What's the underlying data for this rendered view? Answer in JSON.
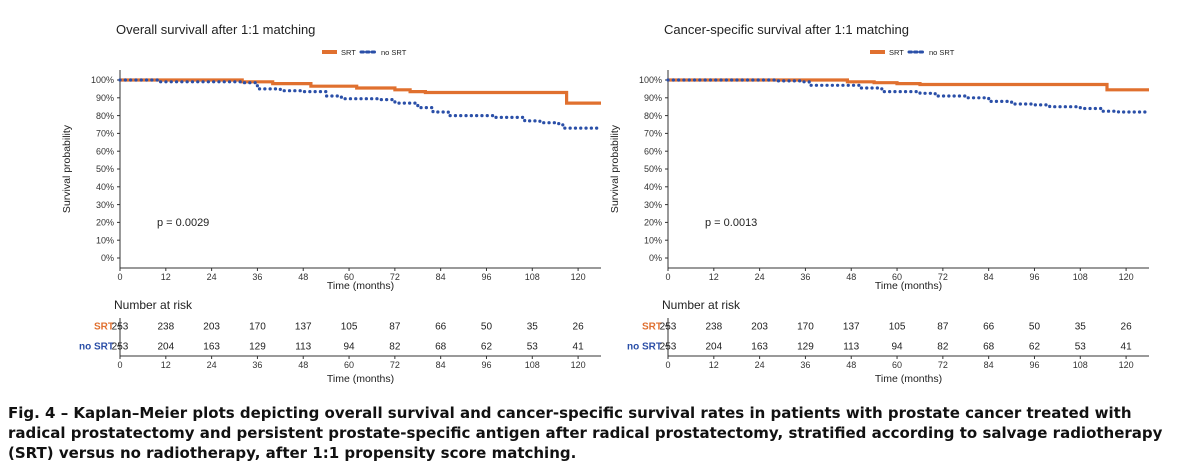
{
  "chart_data": [
    {
      "type": "line",
      "title": "Overall survivall after 1:1 matching",
      "xlabel": "Time (months)",
      "ylabel": "Survival probability",
      "xlim": [
        0,
        126
      ],
      "ylim": [
        0,
        1
      ],
      "x_ticks": [
        "0",
        "12",
        "24",
        "36",
        "48",
        "60",
        "72",
        "84",
        "96",
        "108",
        "120"
      ],
      "y_ticks": [
        "0%",
        "10%",
        "20%",
        "30%",
        "40%",
        "50%",
        "60%",
        "70%",
        "80%",
        "90%",
        "100%"
      ],
      "legend": [
        "SRT",
        "no SRT"
      ],
      "legend_position": "top-center",
      "annotation": "p = 0.0029",
      "series": [
        {
          "name": "SRT",
          "color": "#E0702F",
          "style": "solid",
          "points": [
            [
              0,
              1.0
            ],
            [
              30,
              1.0
            ],
            [
              32,
              0.99
            ],
            [
              36,
              0.99
            ],
            [
              40,
              0.98
            ],
            [
              48,
              0.98
            ],
            [
              50,
              0.965
            ],
            [
              60,
              0.965
            ],
            [
              62,
              0.955
            ],
            [
              70,
              0.955
            ],
            [
              72,
              0.945
            ],
            [
              76,
              0.935
            ],
            [
              80,
              0.93
            ],
            [
              115,
              0.93
            ],
            [
              117,
              0.87
            ],
            [
              126,
              0.87
            ]
          ]
        },
        {
          "name": "no SRT",
          "color": "#2A4FA8",
          "style": "dotted",
          "points": [
            [
              0,
              1.0
            ],
            [
              10,
              0.99
            ],
            [
              32,
              0.985
            ],
            [
              36,
              0.95
            ],
            [
              42,
              0.94
            ],
            [
              48,
              0.935
            ],
            [
              54,
              0.91
            ],
            [
              58,
              0.895
            ],
            [
              68,
              0.89
            ],
            [
              72,
              0.87
            ],
            [
              78,
              0.845
            ],
            [
              82,
              0.82
            ],
            [
              86,
              0.8
            ],
            [
              96,
              0.8
            ],
            [
              98,
              0.79
            ],
            [
              106,
              0.77
            ],
            [
              110,
              0.76
            ],
            [
              114,
              0.755
            ],
            [
              116,
              0.73
            ],
            [
              126,
              0.73
            ]
          ]
        }
      ],
      "risk_table": {
        "header": "Number at risk",
        "rows": [
          {
            "label": "SRT",
            "color": "#E0702F",
            "values": [
              "253",
              "238",
              "203",
              "170",
              "137",
              "105",
              "87",
              "66",
              "50",
              "35",
              "26"
            ]
          },
          {
            "label": "no SRT",
            "color": "#2A4FA8",
            "values": [
              "253",
              "204",
              "163",
              "129",
              "113",
              "94",
              "82",
              "68",
              "62",
              "53",
              "41"
            ]
          }
        ],
        "xlabel": "Time (months)"
      }
    },
    {
      "type": "line",
      "title": "Cancer-specific survival after 1:1 matching",
      "xlabel": "Time (months)",
      "ylabel": "Survival probability",
      "xlim": [
        0,
        126
      ],
      "ylim": [
        0,
        1
      ],
      "x_ticks": [
        "0",
        "12",
        "24",
        "36",
        "48",
        "60",
        "72",
        "84",
        "96",
        "108",
        "120"
      ],
      "y_ticks": [
        "0%",
        "10%",
        "20%",
        "30%",
        "40%",
        "50%",
        "60%",
        "70%",
        "80%",
        "90%",
        "100%"
      ],
      "legend": [
        "SRT",
        "no SRT"
      ],
      "legend_position": "top-center",
      "annotation": "p = 0.0013",
      "series": [
        {
          "name": "SRT",
          "color": "#E0702F",
          "style": "solid",
          "points": [
            [
              0,
              1.0
            ],
            [
              45,
              1.0
            ],
            [
              47,
              0.99
            ],
            [
              54,
              0.985
            ],
            [
              60,
              0.98
            ],
            [
              66,
              0.975
            ],
            [
              114,
              0.975
            ],
            [
              115,
              0.945
            ],
            [
              126,
              0.945
            ]
          ]
        },
        {
          "name": "no SRT",
          "color": "#2A4FA8",
          "style": "dotted",
          "points": [
            [
              0,
              1.0
            ],
            [
              28,
              0.995
            ],
            [
              35,
              0.99
            ],
            [
              37,
              0.97
            ],
            [
              44,
              0.97
            ],
            [
              50,
              0.955
            ],
            [
              56,
              0.935
            ],
            [
              66,
              0.925
            ],
            [
              70,
              0.91
            ],
            [
              78,
              0.9
            ],
            [
              84,
              0.88
            ],
            [
              90,
              0.865
            ],
            [
              96,
              0.86
            ],
            [
              100,
              0.85
            ],
            [
              108,
              0.84
            ],
            [
              114,
              0.825
            ],
            [
              118,
              0.82
            ],
            [
              126,
              0.82
            ]
          ]
        }
      ],
      "risk_table": {
        "header": "Number at risk",
        "rows": [
          {
            "label": "SRT",
            "color": "#E0702F",
            "values": [
              "253",
              "238",
              "203",
              "170",
              "137",
              "105",
              "87",
              "66",
              "50",
              "35",
              "26"
            ]
          },
          {
            "label": "no SRT",
            "color": "#2A4FA8",
            "values": [
              "253",
              "204",
              "163",
              "129",
              "113",
              "94",
              "82",
              "68",
              "62",
              "53",
              "41"
            ]
          }
        ],
        "xlabel": "Time (months)"
      }
    }
  ],
  "caption": "Fig. 4 – Kaplan–Meier plots depicting overall survival and cancer-specific survival rates in patients with prostate cancer treated with radical prostatectomy and persistent prostate-specific antigen after radical prostatectomy, stratified according to salvage radiotherapy (SRT) versus no radiotherapy, after 1:1 propensity score matching."
}
